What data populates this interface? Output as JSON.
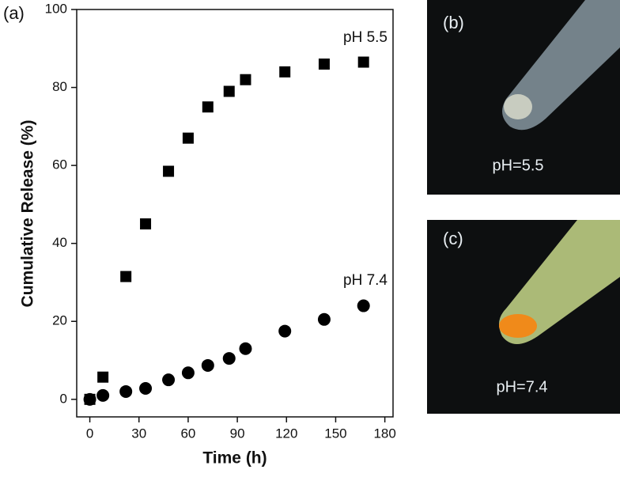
{
  "chart_data": {
    "type": "scatter",
    "panel_label": "(a)",
    "x_label": "Time (h)",
    "y_label": "Cumulative Release (%)",
    "xlim": [
      -8,
      185
    ],
    "xticks": [
      0,
      30,
      60,
      90,
      120,
      150,
      180
    ],
    "ylim": [
      -4.5,
      100
    ],
    "yticks": [
      0,
      20,
      40,
      60,
      80,
      100
    ],
    "x": [
      0,
      8,
      22,
      34,
      48,
      60,
      72,
      85,
      95,
      119,
      143,
      167
    ],
    "series": [
      {
        "name": "pH 5.5",
        "color": "#000000",
        "marker": "square",
        "values": [
          0,
          5.7,
          31.5,
          45,
          58.5,
          67,
          75,
          79,
          82,
          84,
          86,
          86.5
        ]
      },
      {
        "name": "pH 7.4",
        "color": "#000000",
        "marker": "circle",
        "values": [
          0,
          1,
          2,
          2.8,
          5,
          6.8,
          8.7,
          10.5,
          13,
          17.5,
          20.5,
          24
        ]
      }
    ]
  },
  "photos": [
    {
      "label": "(b)",
      "caption": "pH=5.5"
    },
    {
      "label": "(c)",
      "caption": "pH=7.4"
    }
  ]
}
